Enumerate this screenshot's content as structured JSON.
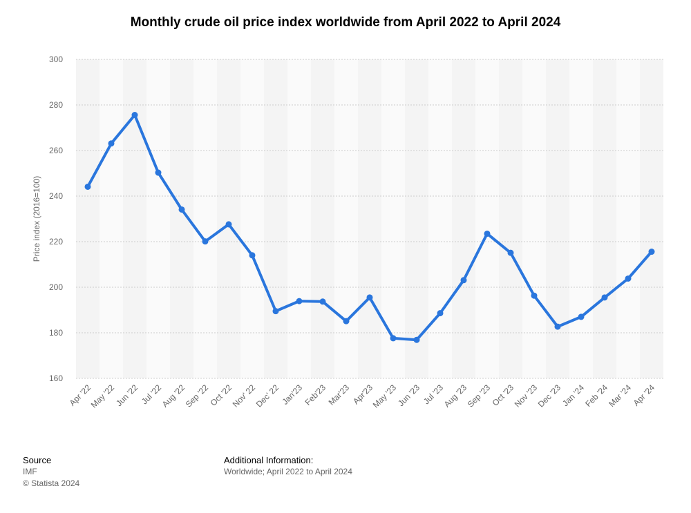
{
  "chart_data": {
    "type": "line",
    "title": "Monthly crude oil price index worldwide from April 2022 to April 2024",
    "xlabel": "",
    "ylabel": "Price index (2016=100)",
    "categories": [
      "Apr '22",
      "May '22",
      "Jun '22",
      "Jul '22",
      "Aug '22",
      "Sep '22",
      "Oct '22",
      "Nov' 22",
      "Dec' 22",
      "Jan'23",
      "Feb'23",
      "Mar'23",
      "Apr'23",
      "May '23",
      "Jun '23",
      "Jul '23",
      "Aug '23",
      "Sep '23",
      "Oct '23",
      "Nov '23",
      "Dec '23",
      "Jan '24",
      "Feb '24",
      "Mar '24",
      "Apr '24"
    ],
    "series": [
      {
        "values": [
          244.1,
          263.1,
          275.6,
          250.3,
          234.1,
          220.1,
          227.6,
          214.0,
          189.5,
          193.9,
          193.7,
          185.1,
          195.5,
          177.6,
          176.9,
          188.6,
          203.1,
          223.5,
          215.1,
          196.3,
          182.7,
          187.0,
          195.5,
          203.8,
          215.6
        ]
      }
    ],
    "ylim": [
      160,
      300
    ],
    "yticks": [
      160,
      180,
      200,
      220,
      240,
      260,
      280,
      300
    ],
    "grid": true,
    "legend": "none",
    "line_color": "#2a76dd",
    "band_colors": [
      "#f4f4f4",
      "#fafafa"
    ],
    "grid_color": "#cccccc"
  },
  "footer": {
    "source_heading": "Source",
    "source_text": "IMF",
    "copyright": "© Statista 2024",
    "info_heading": "Additional Information:",
    "info_text": "Worldwide; April 2022 to April 2024"
  }
}
